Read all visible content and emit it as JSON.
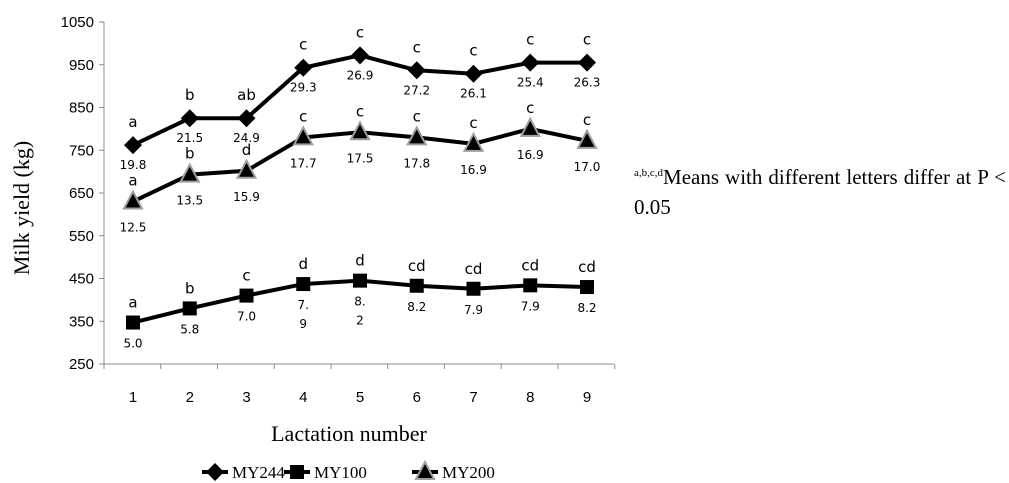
{
  "chart_data": {
    "type": "line",
    "xlabel": "Lactation number",
    "ylabel": "Milk yield (kg)",
    "categories": [
      "1",
      "2",
      "3",
      "4",
      "5",
      "6",
      "7",
      "8",
      "9"
    ],
    "ylim": [
      250,
      1050
    ],
    "yticks": [
      "250",
      "350",
      "450",
      "550",
      "650",
      "750",
      "850",
      "950",
      "1050"
    ],
    "grid": false,
    "legend_position": "bottom",
    "series": [
      {
        "name": "MY244",
        "marker": "diamond",
        "values": [
          762,
          825,
          825,
          943,
          972,
          937,
          929,
          955,
          955
        ],
        "value_labels": [
          "19.8",
          "21.5",
          "24.9",
          "29.3",
          "26.9",
          "27.2",
          "26.1",
          "25.4",
          "26.3"
        ],
        "letters": [
          "a",
          "b",
          "ab",
          "c",
          "c",
          "c",
          "c",
          "c",
          "c"
        ]
      },
      {
        "name": "MY100",
        "marker": "square",
        "values": [
          347,
          380,
          410,
          437,
          445,
          433,
          426,
          434,
          430
        ],
        "value_labels": [
          "5.0",
          "5.8",
          "7.0",
          "7.\n9",
          "8.\n2",
          "8.2",
          "7.9",
          "7.9",
          "8.2"
        ],
        "letters": [
          "a",
          "b",
          "c",
          "d",
          "d",
          "cd",
          "cd",
          "cd",
          "cd"
        ]
      },
      {
        "name": "MY200",
        "marker": "triangle",
        "values": [
          630,
          693,
          702,
          780,
          792,
          780,
          765,
          800,
          772
        ],
        "value_labels": [
          "12.5",
          "13.5",
          "15.9",
          "17.7",
          "17.5",
          "17.8",
          "16.9",
          "16.9",
          "17.0"
        ],
        "letters": [
          "a",
          "b",
          "d",
          "c",
          "c",
          "c",
          "c",
          "c",
          "c"
        ]
      }
    ]
  },
  "footnote": {
    "superscript": "a,b,c,d",
    "text": "Means with different letters differ at P < 0.05"
  }
}
